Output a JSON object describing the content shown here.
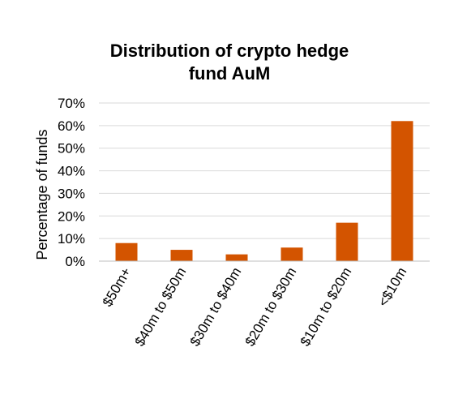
{
  "chart_data": {
    "type": "bar",
    "title_lines": [
      "Distribution of crypto hedge",
      "fund AuM"
    ],
    "xlabel": "",
    "ylabel": "Percentage of funds",
    "categories": [
      "$50m+",
      "$40m to $50m",
      "$30m to $40m",
      "$20m to $30m",
      "$10m to $20m",
      "<$10m"
    ],
    "values": [
      8,
      5,
      3,
      6,
      17,
      62
    ],
    "ylim": [
      0,
      70
    ],
    "yticks": [
      "0%",
      "10%",
      "20%",
      "30%",
      "40%",
      "50%",
      "60%",
      "70%"
    ],
    "grid": true,
    "legend": "none",
    "bar_color": "#d35400"
  }
}
